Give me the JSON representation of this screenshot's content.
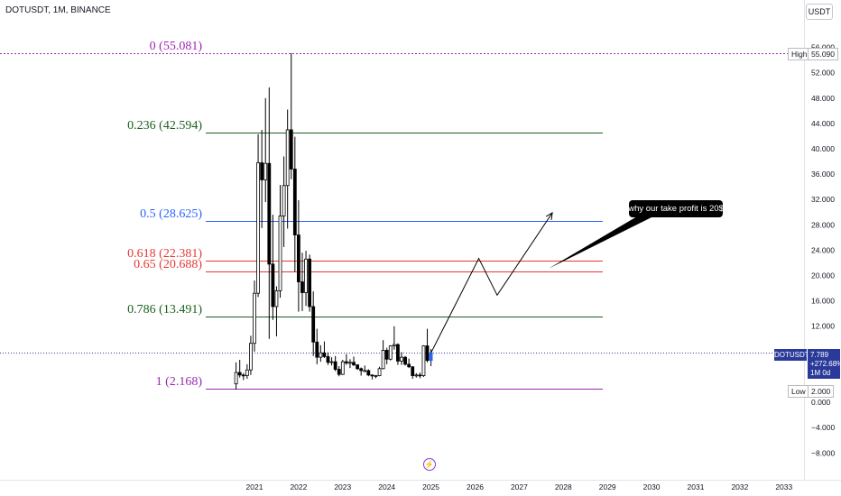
{
  "header": {
    "symbol_title": "DOTUSDT, 1M, BINANCE",
    "currency": "USDT"
  },
  "colors": {
    "background": "#ffffff",
    "bull": "#ffffff",
    "bear": "#000000",
    "level_0": "#9c27b0",
    "level_0236": "#1b5e20",
    "level_05": "#2962ff",
    "level_0618": "#e53935",
    "level_065": "#e53935",
    "level_0786": "#1b5e20",
    "level_1": "#9c27b0",
    "current_price": "#2a3a9a"
  },
  "fib_levels": [
    {
      "ratio": "0",
      "price": 55.081,
      "text": "0 (55.081)",
      "color": "#9c27b0",
      "dashed": true
    },
    {
      "ratio": "0.236",
      "price": 42.594,
      "text": "0.236 (42.594)",
      "color": "#1b5e20",
      "dashed": false
    },
    {
      "ratio": "0.5",
      "price": 28.625,
      "text": "0.5 (28.625)",
      "color": "#2962ff",
      "dashed": false
    },
    {
      "ratio": "0.618",
      "price": 22.381,
      "text": "0.618 (22.381)",
      "color": "#e53935",
      "dashed": false
    },
    {
      "ratio": "0.65",
      "price": 20.688,
      "text": "0.65 (20.688)",
      "color": "#e53935",
      "dashed": false
    },
    {
      "ratio": "0.786",
      "price": 13.491,
      "text": "0.786 (13.491)",
      "color": "#1b5e20",
      "dashed": false
    },
    {
      "ratio": "1",
      "price": 2.168,
      "text": "1 (2.168)",
      "color": "#9c27b0",
      "dashed": false
    }
  ],
  "price_scale": {
    "ticks": [
      "56.000",
      "52.000",
      "48.000",
      "44.000",
      "40.000",
      "36.000",
      "32.000",
      "28.000",
      "24.000",
      "20.000",
      "16.000",
      "12.000",
      "0.000",
      "−4.000",
      "−8.000"
    ],
    "high_label": "High",
    "high_value": "55.090",
    "low_label": "Low",
    "low_value": "2.000",
    "current_symbol": "DOTUSDT",
    "current_price": "7.789",
    "current_change": "+272.68%",
    "current_countdown": "1M 0d"
  },
  "time_axis": {
    "labels": [
      "2021",
      "2022",
      "2023",
      "2024",
      "2025",
      "2026",
      "2027",
      "2028",
      "2029",
      "2030",
      "2031",
      "2032",
      "2033"
    ]
  },
  "annotation": {
    "callout_text": "why our take profit is 20$"
  },
  "chart_data": {
    "type": "candlestick",
    "title": "DOTUSDT, 1M, BINANCE",
    "ylim": [
      -8,
      56
    ],
    "xlim": [
      "2020-08",
      "2033-06"
    ],
    "candles": [
      {
        "t": "2020-08",
        "o": 2.9,
        "h": 6.3,
        "l": 2.0,
        "c": 4.7
      },
      {
        "t": "2020-09",
        "o": 4.7,
        "h": 6.7,
        "l": 3.9,
        "c": 4.3
      },
      {
        "t": "2020-10",
        "o": 4.3,
        "h": 4.6,
        "l": 3.5,
        "c": 4.2
      },
      {
        "t": "2020-11",
        "o": 4.2,
        "h": 6.0,
        "l": 3.7,
        "c": 5.1
      },
      {
        "t": "2020-12",
        "o": 5.1,
        "h": 10.5,
        "l": 4.3,
        "c": 9.3
      },
      {
        "t": "2021-01",
        "o": 9.3,
        "h": 19.2,
        "l": 8.0,
        "c": 17.2
      },
      {
        "t": "2021-02",
        "o": 17.2,
        "h": 42.3,
        "l": 16.6,
        "c": 37.8
      },
      {
        "t": "2021-03",
        "o": 37.8,
        "h": 43.0,
        "l": 27.5,
        "c": 35.1
      },
      {
        "t": "2021-04",
        "o": 35.1,
        "h": 48.0,
        "l": 31.6,
        "c": 37.7
      },
      {
        "t": "2021-05",
        "o": 37.7,
        "h": 49.7,
        "l": 10.0,
        "c": 21.8
      },
      {
        "t": "2021-06",
        "o": 21.8,
        "h": 29.6,
        "l": 13.0,
        "c": 15.1
      },
      {
        "t": "2021-07",
        "o": 15.1,
        "h": 18.3,
        "l": 10.4,
        "c": 17.6
      },
      {
        "t": "2021-08",
        "o": 17.6,
        "h": 34.3,
        "l": 16.5,
        "c": 29.4
      },
      {
        "t": "2021-09",
        "o": 29.4,
        "h": 38.8,
        "l": 24.5,
        "c": 34.2
      },
      {
        "t": "2021-10",
        "o": 34.2,
        "h": 46.2,
        "l": 27.4,
        "c": 43.0
      },
      {
        "t": "2021-11",
        "o": 43.0,
        "h": 55.09,
        "l": 35.2,
        "c": 36.8
      },
      {
        "t": "2021-12",
        "o": 36.8,
        "h": 41.9,
        "l": 20.6,
        "c": 26.4
      },
      {
        "t": "2022-01",
        "o": 26.4,
        "h": 31.9,
        "l": 14.3,
        "c": 19.0
      },
      {
        "t": "2022-02",
        "o": 19.0,
        "h": 23.6,
        "l": 14.4,
        "c": 17.3
      },
      {
        "t": "2022-03",
        "o": 17.3,
        "h": 23.9,
        "l": 15.2,
        "c": 22.6
      },
      {
        "t": "2022-04",
        "o": 22.6,
        "h": 23.3,
        "l": 14.3,
        "c": 15.1
      },
      {
        "t": "2022-05",
        "o": 15.1,
        "h": 17.5,
        "l": 7.3,
        "c": 9.5
      },
      {
        "t": "2022-06",
        "o": 9.5,
        "h": 11.6,
        "l": 6.0,
        "c": 7.1
      },
      {
        "t": "2022-07",
        "o": 7.1,
        "h": 9.0,
        "l": 6.4,
        "c": 7.8
      },
      {
        "t": "2022-08",
        "o": 7.8,
        "h": 9.6,
        "l": 7.0,
        "c": 7.2
      },
      {
        "t": "2022-09",
        "o": 7.2,
        "h": 7.9,
        "l": 5.9,
        "c": 6.3
      },
      {
        "t": "2022-10",
        "o": 6.3,
        "h": 7.1,
        "l": 5.8,
        "c": 6.4
      },
      {
        "t": "2022-11",
        "o": 6.4,
        "h": 7.3,
        "l": 4.9,
        "c": 5.2
      },
      {
        "t": "2022-12",
        "o": 5.2,
        "h": 5.7,
        "l": 4.1,
        "c": 4.4
      },
      {
        "t": "2023-01",
        "o": 4.4,
        "h": 6.7,
        "l": 4.3,
        "c": 6.4
      },
      {
        "t": "2023-02",
        "o": 6.4,
        "h": 7.6,
        "l": 5.9,
        "c": 6.2
      },
      {
        "t": "2023-03",
        "o": 6.2,
        "h": 6.8,
        "l": 5.4,
        "c": 6.3
      },
      {
        "t": "2023-04",
        "o": 6.3,
        "h": 7.2,
        "l": 5.7,
        "c": 5.9
      },
      {
        "t": "2023-05",
        "o": 5.9,
        "h": 6.0,
        "l": 5.1,
        "c": 5.3
      },
      {
        "t": "2023-06",
        "o": 5.3,
        "h": 5.5,
        "l": 4.2,
        "c": 5.0
      },
      {
        "t": "2023-07",
        "o": 5.0,
        "h": 5.8,
        "l": 4.8,
        "c": 5.0
      },
      {
        "t": "2023-08",
        "o": 5.0,
        "h": 5.2,
        "l": 4.1,
        "c": 4.3
      },
      {
        "t": "2023-09",
        "o": 4.3,
        "h": 4.4,
        "l": 3.6,
        "c": 4.2
      },
      {
        "t": "2023-10",
        "o": 4.2,
        "h": 4.3,
        "l": 3.8,
        "c": 4.2
      },
      {
        "t": "2023-11",
        "o": 4.2,
        "h": 5.6,
        "l": 4.1,
        "c": 5.3
      },
      {
        "t": "2023-12",
        "o": 5.3,
        "h": 9.8,
        "l": 5.2,
        "c": 8.2
      },
      {
        "t": "2024-01",
        "o": 8.2,
        "h": 8.6,
        "l": 6.0,
        "c": 6.8
      },
      {
        "t": "2024-02",
        "o": 6.8,
        "h": 9.0,
        "l": 6.6,
        "c": 8.9
      },
      {
        "t": "2024-03",
        "o": 8.9,
        "h": 12.0,
        "l": 8.3,
        "c": 9.1
      },
      {
        "t": "2024-04",
        "o": 9.1,
        "h": 9.3,
        "l": 5.9,
        "c": 6.5
      },
      {
        "t": "2024-05",
        "o": 6.5,
        "h": 7.9,
        "l": 5.9,
        "c": 7.1
      },
      {
        "t": "2024-06",
        "o": 7.1,
        "h": 7.3,
        "l": 5.8,
        "c": 6.0
      },
      {
        "t": "2024-07",
        "o": 6.0,
        "h": 6.9,
        "l": 5.4,
        "c": 5.6
      },
      {
        "t": "2024-08",
        "o": 5.6,
        "h": 5.7,
        "l": 3.7,
        "c": 4.2
      },
      {
        "t": "2024-09",
        "o": 4.2,
        "h": 4.6,
        "l": 3.9,
        "c": 4.3
      },
      {
        "t": "2024-10",
        "o": 4.3,
        "h": 4.7,
        "l": 3.8,
        "c": 4.2
      },
      {
        "t": "2024-11",
        "o": 4.2,
        "h": 9.0,
        "l": 4.0,
        "c": 8.9
      },
      {
        "t": "2024-12",
        "o": 8.9,
        "h": 11.6,
        "l": 6.3,
        "c": 6.6
      },
      {
        "t": "2025-01",
        "o": 6.6,
        "h": 8.4,
        "l": 5.7,
        "c": 7.789
      }
    ],
    "projection_path": [
      {
        "t": "2025-01",
        "y": 7.789
      },
      {
        "t": "2026-02",
        "y": 22.7
      },
      {
        "t": "2026-07",
        "y": 16.9
      },
      {
        "t": "2027-10",
        "y": 29.9
      }
    ],
    "callout_pointer": {
      "t": "2027-09",
      "y": 21.1
    }
  }
}
